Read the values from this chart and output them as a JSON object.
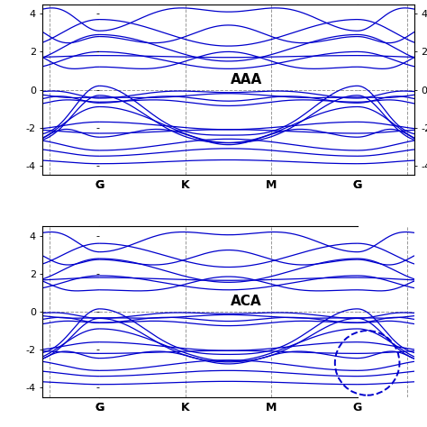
{
  "title_AAA": "AAA",
  "title_ACA": "ACA",
  "xtick_labels_full": [
    "G",
    "K",
    "M",
    "G"
  ],
  "ylim": [
    -4.5,
    4.5
  ],
  "yticks": [
    -4,
    -2,
    0,
    2,
    4
  ],
  "line_color": "#0000cc",
  "line_width": 0.9,
  "dashed_color": "#999999",
  "dashed_lw": 0.7,
  "n_pts": 300,
  "label_fontsize": 11,
  "tick_fontsize": 8,
  "xtick_fontsize": 9,
  "figsize": [
    4.74,
    4.74
  ],
  "dpi": 100
}
